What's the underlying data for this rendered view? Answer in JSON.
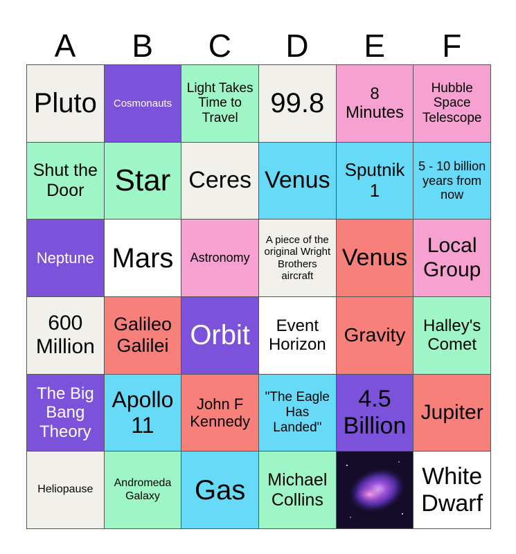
{
  "header": {
    "letters": [
      "A",
      "B",
      "C",
      "D",
      "E",
      "F"
    ]
  },
  "grid": {
    "rows": [
      [
        {
          "text": "Pluto",
          "color": "#f2f0ea"
        },
        {
          "text": "Cosmonauts",
          "color": "#7b52d9",
          "text_color": "#ffffff"
        },
        {
          "text": "Light Takes Time to Travel",
          "color": "#9ef5c5"
        },
        {
          "text": "99.8",
          "color": "#f2f0ea"
        },
        {
          "text": "8 Minutes",
          "color": "#f7a1d2"
        },
        {
          "text": "Hubble Space Telescope",
          "color": "#f7a1d2"
        }
      ],
      [
        {
          "text": "Shut the Door",
          "color": "#9ef5c5"
        },
        {
          "text": "Star",
          "color": "#9ef5c5"
        },
        {
          "text": "Ceres",
          "color": "#f2f0ea"
        },
        {
          "text": "Venus",
          "color": "#66daf7"
        },
        {
          "text": "Sputnik 1",
          "color": "#66daf7"
        },
        {
          "text": "5 - 10 billion years from now",
          "color": "#66daf7"
        }
      ],
      [
        {
          "text": "Neptune",
          "color": "#7b52d9",
          "text_color": "#ffffff"
        },
        {
          "text": "Mars",
          "color": "#ffffff"
        },
        {
          "text": "Astronomy",
          "color": "#f7a1d2"
        },
        {
          "text": "A piece of the original Wright Brothers aircraft",
          "color": "#f2f0ea"
        },
        {
          "text": "Venus",
          "color": "#f7807b"
        },
        {
          "text": "Local Group",
          "color": "#f7a1d2"
        }
      ],
      [
        {
          "text": "600 Million",
          "color": "#f2f0ea"
        },
        {
          "text": "Galileo Galilei",
          "color": "#f7807b"
        },
        {
          "text": "Orbit",
          "color": "#7b52d9",
          "text_color": "#ffffff"
        },
        {
          "text": "Event Horizon",
          "color": "#ffffff"
        },
        {
          "text": "Gravity",
          "color": "#f7807b"
        },
        {
          "text": "Halley's Comet",
          "color": "#9ef5c5"
        }
      ],
      [
        {
          "text": "The Big Bang Theory",
          "color": "#7b52d9",
          "text_color": "#ffffff"
        },
        {
          "text": "Apollo 11",
          "color": "#66daf7"
        },
        {
          "text": "John F Kennedy",
          "color": "#f7807b"
        },
        {
          "text": "\"The Eagle Has Landed\"",
          "color": "#66daf7"
        },
        {
          "text": "4.5 Billion",
          "color": "#7b52d9"
        },
        {
          "text": "Jupiter",
          "color": "#f7807b"
        }
      ],
      [
        {
          "text": "Heliopause",
          "color": "#f2f0ea"
        },
        {
          "text": "Andromeda Galaxy",
          "color": "#9ef5c5"
        },
        {
          "text": "Gas",
          "color": "#66daf7"
        },
        {
          "text": "Michael Collins",
          "color": "#9ef5c5"
        },
        {
          "color": "#140c28"
        },
        {
          "text": "White Dwarf",
          "color": "#ffffff"
        }
      ]
    ]
  }
}
